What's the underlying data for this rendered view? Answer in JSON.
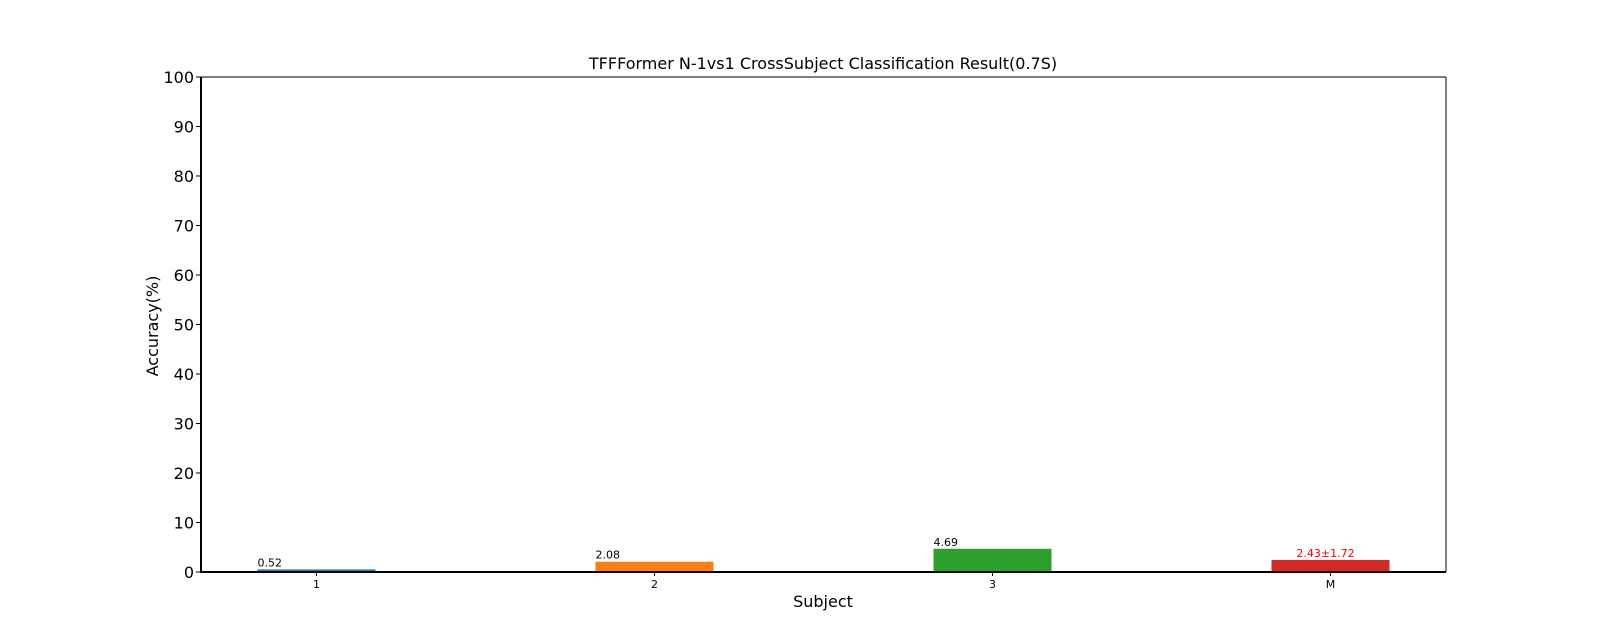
{
  "chart_data": {
    "type": "bar",
    "title": "TFFFormer N-1vs1 CrossSubject Classification Result(0.7S)",
    "xlabel": "Subject",
    "ylabel": "Accuracy(%)",
    "ylim": [
      0,
      100
    ],
    "yticks": [
      0,
      10,
      20,
      30,
      40,
      50,
      60,
      70,
      80,
      90,
      100
    ],
    "categories": [
      "1",
      "2",
      "3",
      "M"
    ],
    "values": [
      0.52,
      2.08,
      4.69,
      2.43
    ],
    "value_labels": [
      "0.52",
      "2.08",
      "4.69",
      "2.43±1.72"
    ],
    "colors": [
      "#1f77b4",
      "#ff7f0e",
      "#2ca02c",
      "#d62728"
    ],
    "label_colors": [
      "#000000",
      "#000000",
      "#000000",
      "#ff0000"
    ],
    "grid": false,
    "legend": "none"
  }
}
